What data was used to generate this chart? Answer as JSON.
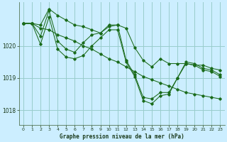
{
  "title": "Graphe pression niveau de la mer (hPa)",
  "bg_color": "#cceeff",
  "line_color": "#1a6b1a",
  "grid_color": "#99cccc",
  "x_ticks": [
    0,
    1,
    2,
    3,
    4,
    5,
    6,
    7,
    8,
    9,
    10,
    11,
    12,
    13,
    14,
    15,
    16,
    17,
    18,
    19,
    20,
    21,
    22,
    23
  ],
  "y_ticks": [
    1018,
    1019,
    1020
  ],
  "ylim": [
    1017.55,
    1021.35
  ],
  "xlim": [
    -0.5,
    23.5
  ],
  "series": [
    [
      1020.7,
      1020.7,
      1020.65,
      1021.15,
      1020.95,
      1020.8,
      1020.65,
      1020.6,
      1020.5,
      1020.4,
      1020.6,
      1020.65,
      1020.55,
      1019.95,
      1019.55,
      1019.35,
      1019.6,
      1019.45,
      1019.45,
      1019.45,
      1019.4,
      1019.4,
      1019.3,
      1019.25
    ],
    [
      1020.7,
      1020.7,
      1020.3,
      1021.1,
      1020.15,
      1019.9,
      1019.8,
      1020.1,
      1020.35,
      1020.4,
      1020.65,
      1020.65,
      1019.55,
      1019.1,
      1018.4,
      1018.35,
      1018.55,
      1018.55,
      1019.0,
      1019.5,
      1019.45,
      1019.3,
      1019.25,
      1019.1
    ],
    [
      1020.7,
      1020.7,
      1020.05,
      1020.9,
      1019.9,
      1019.65,
      1019.6,
      1019.7,
      1020.0,
      1020.25,
      1020.5,
      1020.5,
      1019.5,
      1019.05,
      1018.3,
      1018.2,
      1018.45,
      1018.5,
      1019.0,
      1019.45,
      1019.4,
      1019.25,
      1019.2,
      1019.05
    ],
    [
      1020.7,
      1020.7,
      1020.55,
      1020.5,
      1020.35,
      1020.25,
      1020.15,
      1020.0,
      1019.9,
      1019.75,
      1019.6,
      1019.5,
      1019.35,
      1019.2,
      1019.05,
      1018.95,
      1018.85,
      1018.75,
      1018.65,
      1018.55,
      1018.5,
      1018.45,
      1018.4,
      1018.35
    ]
  ]
}
